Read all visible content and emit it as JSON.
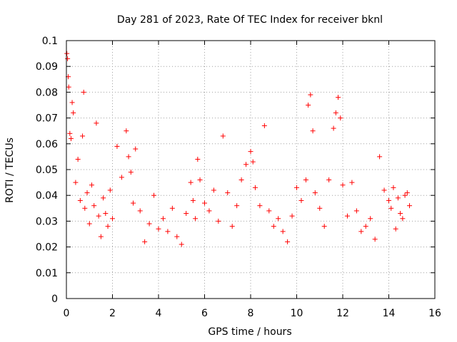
{
  "chart_data": {
    "type": "scatter",
    "title": "Day 281 of 2023, Rate Of TEC Index for receiver bknl",
    "xlabel": "GPS time / hours",
    "ylabel": "ROTI / TECUs",
    "xlim": [
      0,
      16
    ],
    "ylim": [
      0,
      0.1
    ],
    "x_ticks": [
      0,
      2,
      4,
      6,
      8,
      10,
      12,
      14,
      16
    ],
    "x_tick_labels": [
      "0",
      "2",
      "4",
      "6",
      "8",
      "10",
      "12",
      "14",
      "16"
    ],
    "y_ticks": [
      0,
      0.01,
      0.02,
      0.03,
      0.04,
      0.05,
      0.06,
      0.07,
      0.08,
      0.09,
      0.1
    ],
    "y_tick_labels": [
      "0",
      "0.01",
      "0.02",
      "0.03",
      "0.04",
      "0.05",
      "0.06",
      "0.07",
      "0.08",
      "0.09",
      "0.1"
    ],
    "grid": true,
    "marker": "+",
    "marker_color": "#ff0000",
    "series": [
      {
        "x": [
          0.02,
          0.05,
          0.08,
          0.1,
          0.15,
          0.2,
          0.25,
          0.3,
          0.4,
          0.5,
          0.6,
          0.7,
          0.75,
          0.8,
          0.9,
          1.0,
          1.1,
          1.2,
          1.3,
          1.4,
          1.5,
          1.6,
          1.7,
          1.8,
          1.9,
          2.0,
          2.2,
          2.4,
          2.6,
          2.7,
          2.8,
          2.9,
          3.0,
          3.2,
          3.4,
          3.6,
          3.8,
          4.0,
          4.2,
          4.4,
          4.6,
          4.8,
          5.0,
          5.2,
          5.4,
          5.5,
          5.6,
          5.7,
          5.8,
          6.0,
          6.2,
          6.4,
          6.6,
          6.8,
          7.0,
          7.2,
          7.4,
          7.6,
          7.8,
          8.0,
          8.1,
          8.2,
          8.4,
          8.6,
          8.8,
          9.0,
          9.2,
          9.4,
          9.6,
          9.8,
          10.0,
          10.2,
          10.4,
          10.5,
          10.6,
          10.7,
          10.8,
          11.0,
          11.2,
          11.4,
          11.6,
          11.7,
          11.8,
          11.9,
          12.0,
          12.2,
          12.4,
          12.6,
          12.8,
          13.0,
          13.2,
          13.4,
          13.6,
          13.8,
          14.0,
          14.1,
          14.2,
          14.3,
          14.4,
          14.5,
          14.6,
          14.7,
          14.8,
          14.9
        ],
        "y": [
          0.095,
          0.093,
          0.086,
          0.082,
          0.064,
          0.062,
          0.076,
          0.072,
          0.045,
          0.054,
          0.038,
          0.063,
          0.08,
          0.035,
          0.041,
          0.029,
          0.044,
          0.036,
          0.068,
          0.032,
          0.024,
          0.039,
          0.033,
          0.028,
          0.042,
          0.031,
          0.059,
          0.047,
          0.065,
          0.055,
          0.049,
          0.037,
          0.058,
          0.034,
          0.022,
          0.029,
          0.04,
          0.027,
          0.031,
          0.026,
          0.035,
          0.024,
          0.021,
          0.033,
          0.045,
          0.038,
          0.031,
          0.054,
          0.046,
          0.037,
          0.034,
          0.042,
          0.03,
          0.063,
          0.041,
          0.028,
          0.036,
          0.046,
          0.052,
          0.057,
          0.053,
          0.043,
          0.036,
          0.067,
          0.034,
          0.028,
          0.031,
          0.026,
          0.022,
          0.032,
          0.043,
          0.038,
          0.046,
          0.075,
          0.079,
          0.065,
          0.041,
          0.035,
          0.028,
          0.046,
          0.066,
          0.072,
          0.078,
          0.07,
          0.044,
          0.032,
          0.045,
          0.034,
          0.026,
          0.028,
          0.031,
          0.023,
          0.055,
          0.042,
          0.038,
          0.035,
          0.043,
          0.027,
          0.039,
          0.033,
          0.031,
          0.04,
          0.041,
          0.036
        ]
      }
    ]
  }
}
